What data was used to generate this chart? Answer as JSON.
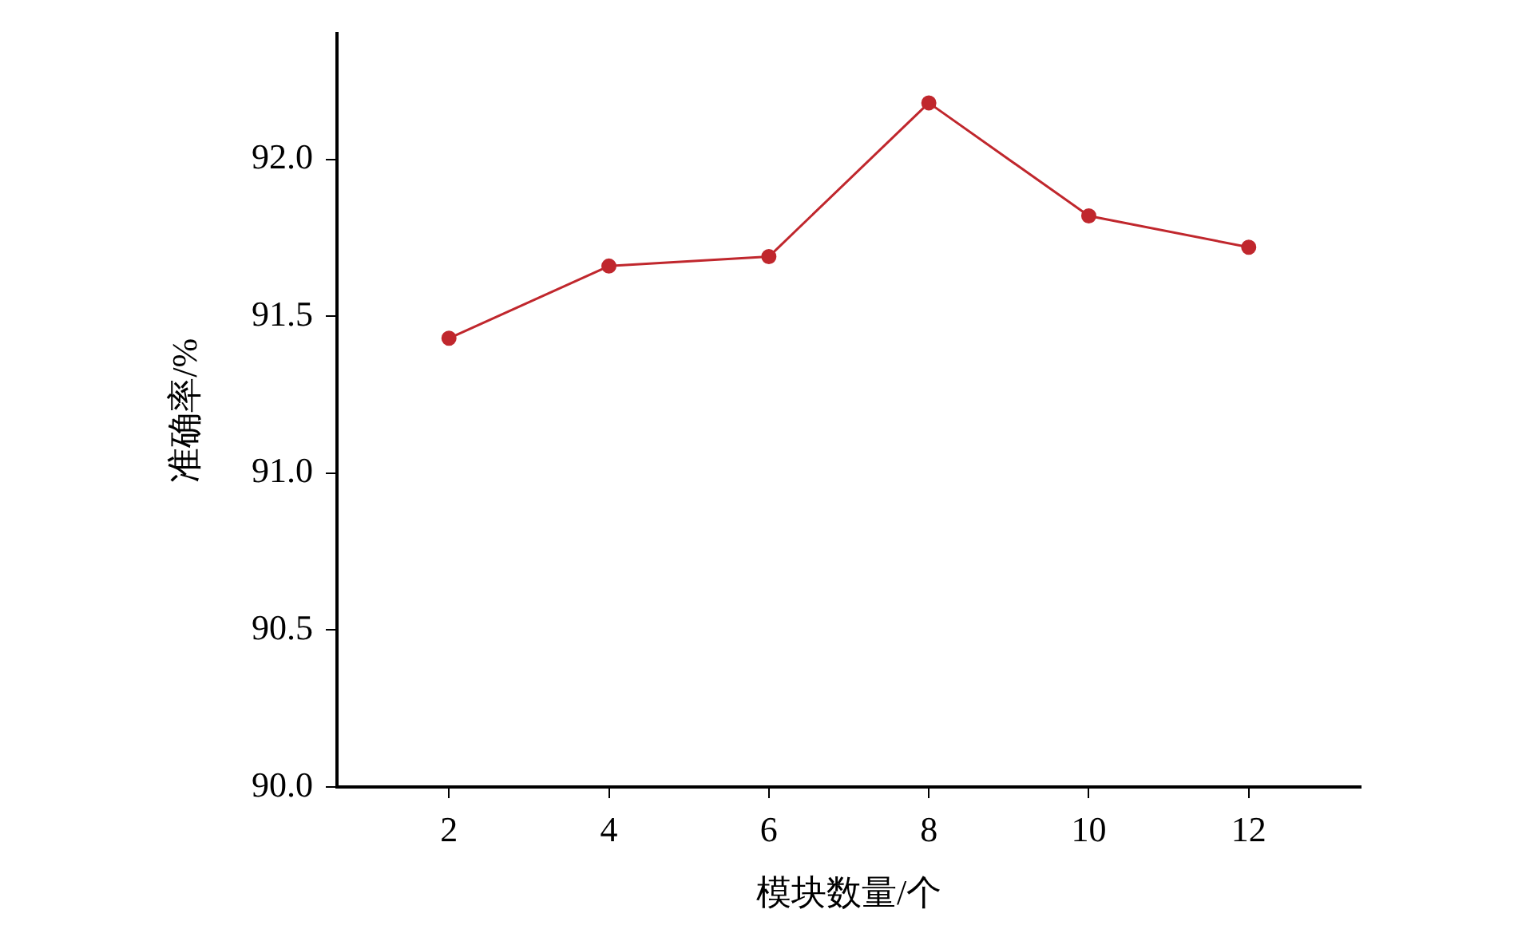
{
  "chart_data": {
    "type": "line",
    "xlabel": "模块数量/个",
    "ylabel": "准确率/%",
    "x": [
      2,
      4,
      6,
      8,
      10,
      12
    ],
    "series": [
      {
        "color": "#c0272d",
        "values": [
          91.43,
          91.66,
          91.69,
          92.18,
          91.82,
          91.72
        ]
      }
    ],
    "xlim": [
      0.6,
      13.4
    ],
    "xticks": [
      2,
      4,
      6,
      8,
      10,
      12
    ],
    "ylim": [
      90,
      92.4
    ],
    "yticks": [
      {
        "value": 90,
        "label": "90.0"
      },
      {
        "value": 90.5,
        "label": "90.5"
      },
      {
        "value": 91,
        "label": "91.0"
      },
      {
        "value": 91.5,
        "label": "91.5"
      },
      {
        "value": 92,
        "label": "92.0"
      }
    ],
    "grid": false,
    "legend": false,
    "marker": "circle",
    "line_style": "solid"
  }
}
